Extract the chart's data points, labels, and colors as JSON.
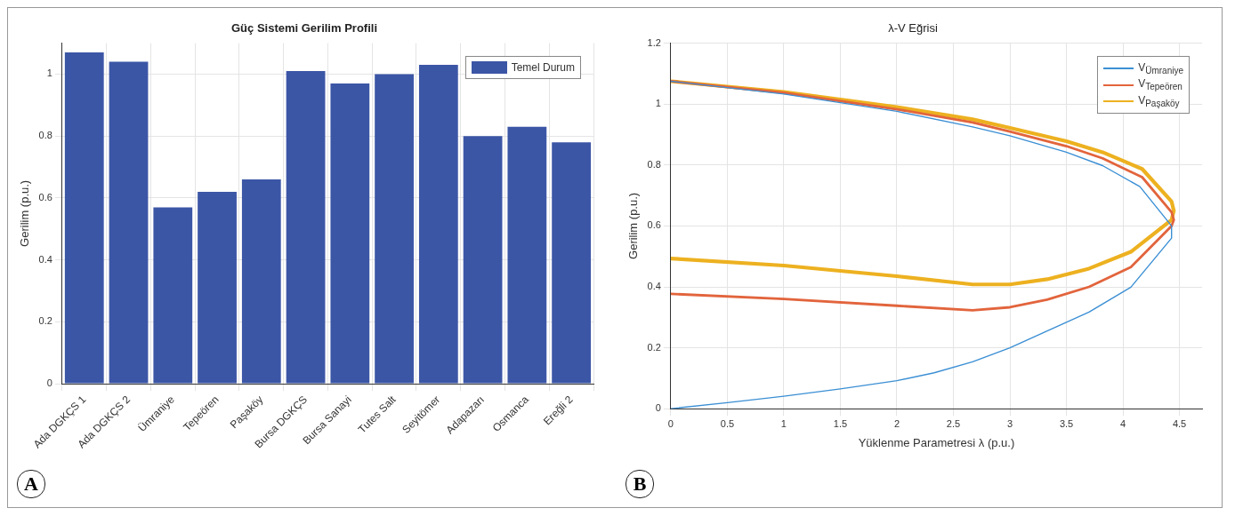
{
  "chart_data": [
    {
      "type": "bar",
      "title": "Güç Sistemi Gerilim Profili",
      "ylabel": "Gerilim (p.u.)",
      "categories": [
        "Ada DGKÇS 1",
        "Ada DGKÇS 2",
        "Ümraniye",
        "Tepeören",
        "Paşaköy",
        "Bursa DGKÇS",
        "Bursa Sanayi",
        "Tutes Salt",
        "Seyitömer",
        "Adapazarı",
        "Osmanca",
        "Ereğli 2"
      ],
      "series": [
        {
          "name": "Temel Durum",
          "color": "#3c56a6",
          "values": [
            1.07,
            1.04,
            0.57,
            0.62,
            0.66,
            1.01,
            0.97,
            1.0,
            1.03,
            0.8,
            0.83,
            0.78
          ]
        }
      ],
      "ylim": [
        0,
        1.1
      ],
      "yticks": [
        0,
        0.2,
        0.4,
        0.6,
        0.8,
        1
      ],
      "grid": true,
      "legend": "top right",
      "annotations": [
        "A"
      ]
    },
    {
      "type": "line",
      "title": "λ-V Eğrisi",
      "xlabel": "Yüklenme Parametresi λ (p.u.)",
      "ylabel": "Gerilim (p.u.)",
      "series": [
        {
          "name": "V$_{Ümraniye}$",
          "color": "#3b8fd4",
          "x": [
            0,
            1,
            2,
            2.67,
            3,
            3.5,
            3.82,
            4.15,
            4.43,
            4.43,
            4.07,
            3.7,
            3.33,
            3,
            2.67,
            2.33,
            2,
            1.5,
            1,
            0.5,
            0
          ],
          "values": [
            1.075,
            1.033,
            0.976,
            0.925,
            0.896,
            0.842,
            0.798,
            0.729,
            0.6,
            0.56,
            0.399,
            0.317,
            0.255,
            0.2,
            0.154,
            0.118,
            0.092,
            0.065,
            0.041,
            0.02,
            0
          ]
        },
        {
          "name": "V$_{Tepeören}$",
          "color": "#e2643c",
          "x": [
            0,
            1,
            2,
            2.67,
            3,
            3.5,
            3.82,
            4.17,
            4.43,
            4.45,
            4.43,
            4.07,
            3.7,
            3.33,
            3,
            2.67,
            2,
            1,
            0
          ],
          "values": [
            1.075,
            1.037,
            0.983,
            0.94,
            0.91,
            0.862,
            0.822,
            0.76,
            0.645,
            0.62,
            0.6,
            0.465,
            0.4,
            0.358,
            0.333,
            0.323,
            0.338,
            0.36,
            0.377
          ]
        },
        {
          "name": "V$_{Paşaköy}$",
          "color": "#edb120",
          "x": [
            0,
            1,
            2,
            2.67,
            3,
            3.5,
            3.82,
            4.17,
            4.43,
            4.45,
            4.43,
            4.07,
            3.7,
            3.33,
            3,
            2.67,
            2,
            1,
            0
          ],
          "values": [
            1.075,
            1.04,
            0.99,
            0.95,
            0.922,
            0.878,
            0.842,
            0.787,
            0.68,
            0.65,
            0.62,
            0.515,
            0.46,
            0.425,
            0.408,
            0.408,
            0.435,
            0.47,
            0.493
          ]
        }
      ],
      "xlim": [
        0,
        4.7
      ],
      "xticks": [
        0,
        0.5,
        1,
        1.5,
        2,
        2.5,
        3,
        3.5,
        4,
        4.5
      ],
      "ylim": [
        0,
        1.2
      ],
      "yticks": [
        0,
        0.2,
        0.4,
        0.6,
        0.8,
        1,
        1.2
      ],
      "grid": true,
      "legend": "top right",
      "annotations": [
        "B"
      ]
    }
  ]
}
